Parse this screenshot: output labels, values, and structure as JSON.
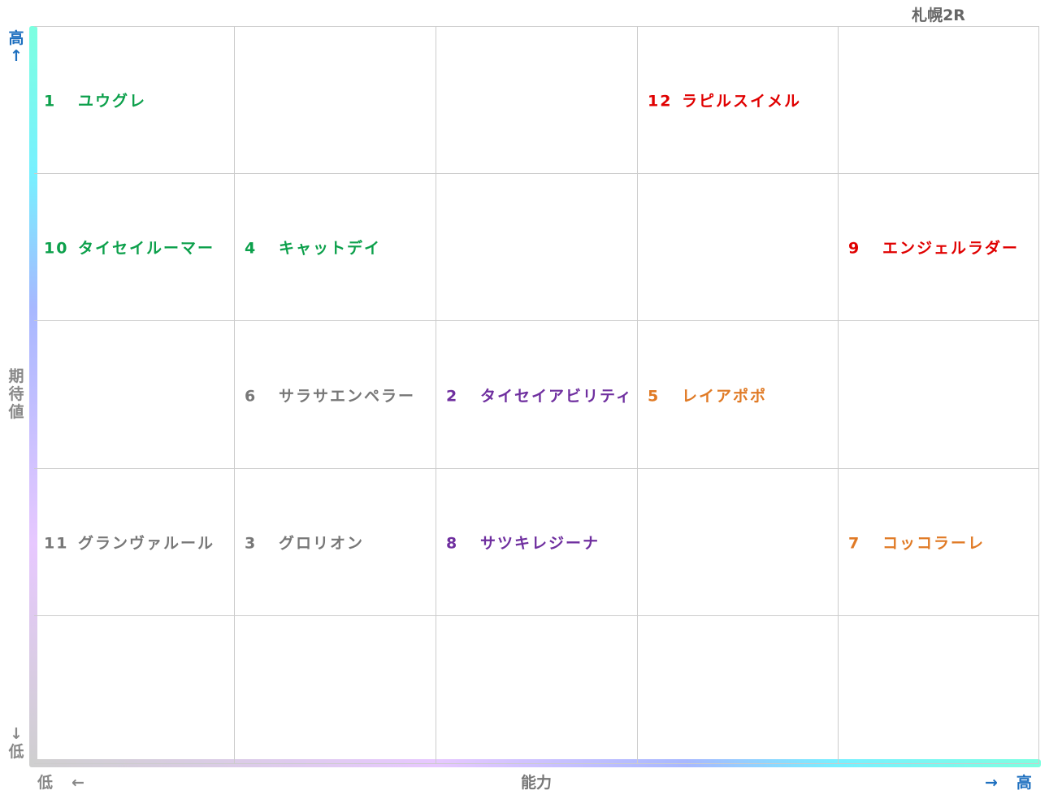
{
  "title": "札幌2R",
  "colors": {
    "green": "#0ca04b",
    "red": "#e00000",
    "gray": "#777777",
    "purple": "#6f2f9f",
    "orange": "#e07a25",
    "blue": "#1d6fbf"
  },
  "axes": {
    "y_title": [
      "期",
      "待",
      "値"
    ],
    "y_high": [
      "高",
      "↑"
    ],
    "y_low": [
      "↓",
      "低"
    ],
    "x_title": "能力",
    "x_low": "低　←",
    "x_high": "→　高"
  },
  "chart_data": {
    "type": "scatter",
    "title": "札幌2R",
    "xlabel": "能力",
    "ylabel": "期待値",
    "x_levels": 5,
    "y_levels": 5,
    "grid": true,
    "points": [
      {
        "num": "1",
        "name": "ユウグレ",
        "x": 1,
        "y": 5,
        "color": "green"
      },
      {
        "num": "12",
        "name": "ラピルスイメル",
        "x": 4,
        "y": 5,
        "color": "red"
      },
      {
        "num": "10",
        "name": "タイセイルーマー",
        "x": 1,
        "y": 4,
        "color": "green"
      },
      {
        "num": "4",
        "name": "キャットデイ",
        "x": 2,
        "y": 4,
        "color": "green"
      },
      {
        "num": "9",
        "name": "エンジェルラダー",
        "x": 5,
        "y": 4,
        "color": "red"
      },
      {
        "num": "6",
        "name": "サラサエンペラー",
        "x": 2,
        "y": 3,
        "color": "gray"
      },
      {
        "num": "2",
        "name": "タイセイアビリティ",
        "x": 3,
        "y": 3,
        "color": "purple"
      },
      {
        "num": "5",
        "name": "レイアポポ",
        "x": 4,
        "y": 3,
        "color": "orange"
      },
      {
        "num": "11",
        "name": "グランヴァルール",
        "x": 1,
        "y": 2,
        "color": "gray"
      },
      {
        "num": "3",
        "name": "グロリオン",
        "x": 2,
        "y": 2,
        "color": "gray"
      },
      {
        "num": "8",
        "name": "サツキレジーナ",
        "x": 3,
        "y": 2,
        "color": "purple"
      },
      {
        "num": "7",
        "name": "コッコラーレ",
        "x": 5,
        "y": 2,
        "color": "orange"
      }
    ]
  }
}
